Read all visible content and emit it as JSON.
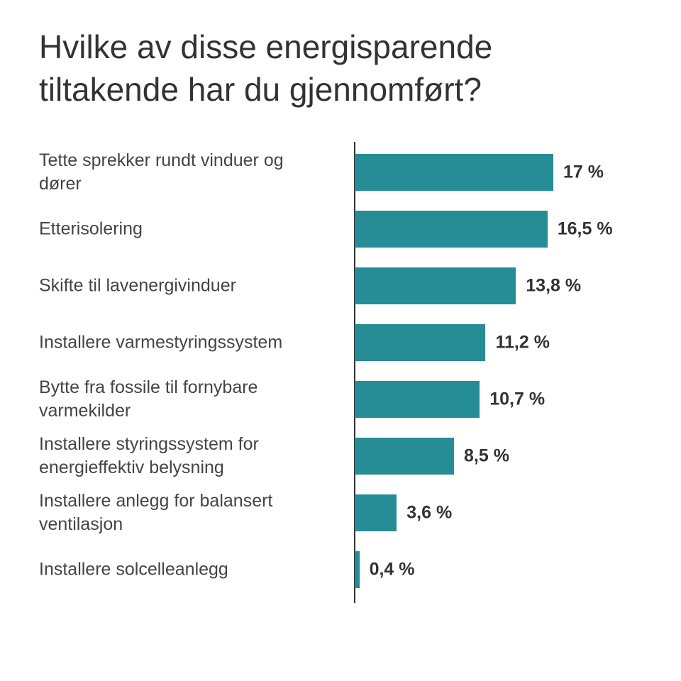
{
  "chart_data": {
    "type": "bar",
    "orientation": "horizontal",
    "title": "Hvilke av disse energisparende tiltakende har du gjennomført?",
    "categories": [
      "Tette sprekker rundt vinduer og dører",
      "Etterisolering",
      "Skifte til lavenergivinduer",
      "Installere varmestyringssystem",
      "Bytte fra fossile til fornybare varmekilder",
      "Installere styringssystem for energieffektiv belysning",
      "Installere anlegg for balansert ventilasjon",
      "Installere solcelleanlegg"
    ],
    "values": [
      17,
      16.5,
      13.8,
      11.2,
      10.7,
      8.5,
      3.6,
      0.4
    ],
    "value_labels": [
      "17 %",
      "16,5 %",
      "13,8 %",
      "11,2 %",
      "10,7 %",
      "8,5 %",
      "3,6 %",
      "0,4 %"
    ],
    "color": "#268c96"
  }
}
